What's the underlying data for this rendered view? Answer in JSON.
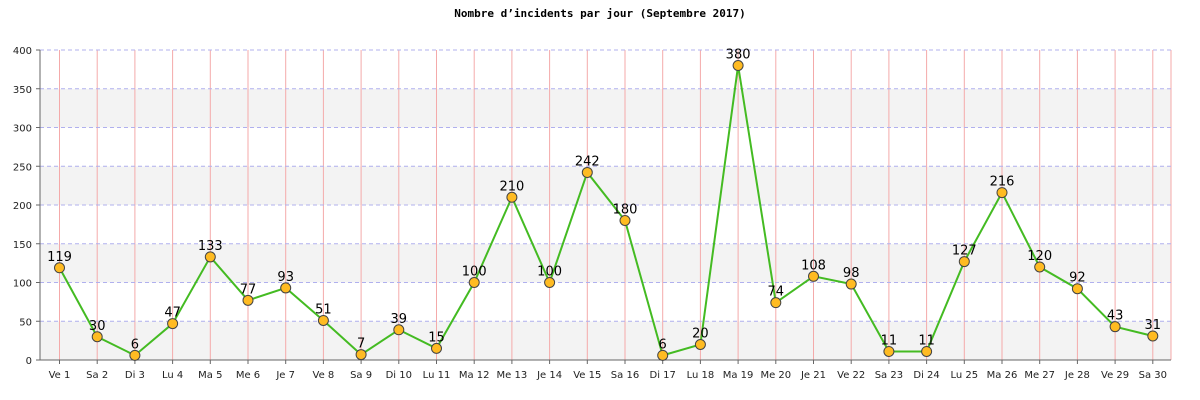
{
  "chart_data": {
    "type": "line",
    "title": "Nombre d’incidents par jour (Septembre 2017)",
    "xlabel": "",
    "ylabel": "",
    "ylim": [
      0,
      400
    ],
    "yticks": [
      0,
      50,
      100,
      150,
      200,
      250,
      300,
      350,
      400
    ],
    "grid": true,
    "categories": [
      "Ve 1",
      "Sa 2",
      "Di 3",
      "Lu 4",
      "Ma 5",
      "Me 6",
      "Je 7",
      "Ve 8",
      "Sa 9",
      "Di 10",
      "Lu 11",
      "Ma 12",
      "Me 13",
      "Je 14",
      "Ve 15",
      "Sa 16",
      "Di 17",
      "Lu 18",
      "Ma 19",
      "Me 20",
      "Je 21",
      "Ve 22",
      "Sa 23",
      "Di 24",
      "Lu 25",
      "Ma 26",
      "Me 27",
      "Je 28",
      "Ve 29",
      "Sa 30"
    ],
    "series": [
      {
        "values": [
          119,
          30,
          6,
          47,
          133,
          77,
          93,
          51,
          7,
          39,
          15,
          100,
          210,
          100,
          242,
          180,
          6,
          20,
          380,
          74,
          108,
          98,
          11,
          11,
          127,
          216,
          120,
          92,
          43,
          31
        ]
      }
    ],
    "colors": {
      "line": "#44bb22",
      "marker_fill": "#ffbb22",
      "marker_stroke": "#444444",
      "band_light": "#ffffff",
      "band_dark": "#f3f3f3",
      "hgrid": "#b0b0ee",
      "vgrid": "#f4aaaa",
      "axis": "#666666"
    }
  }
}
